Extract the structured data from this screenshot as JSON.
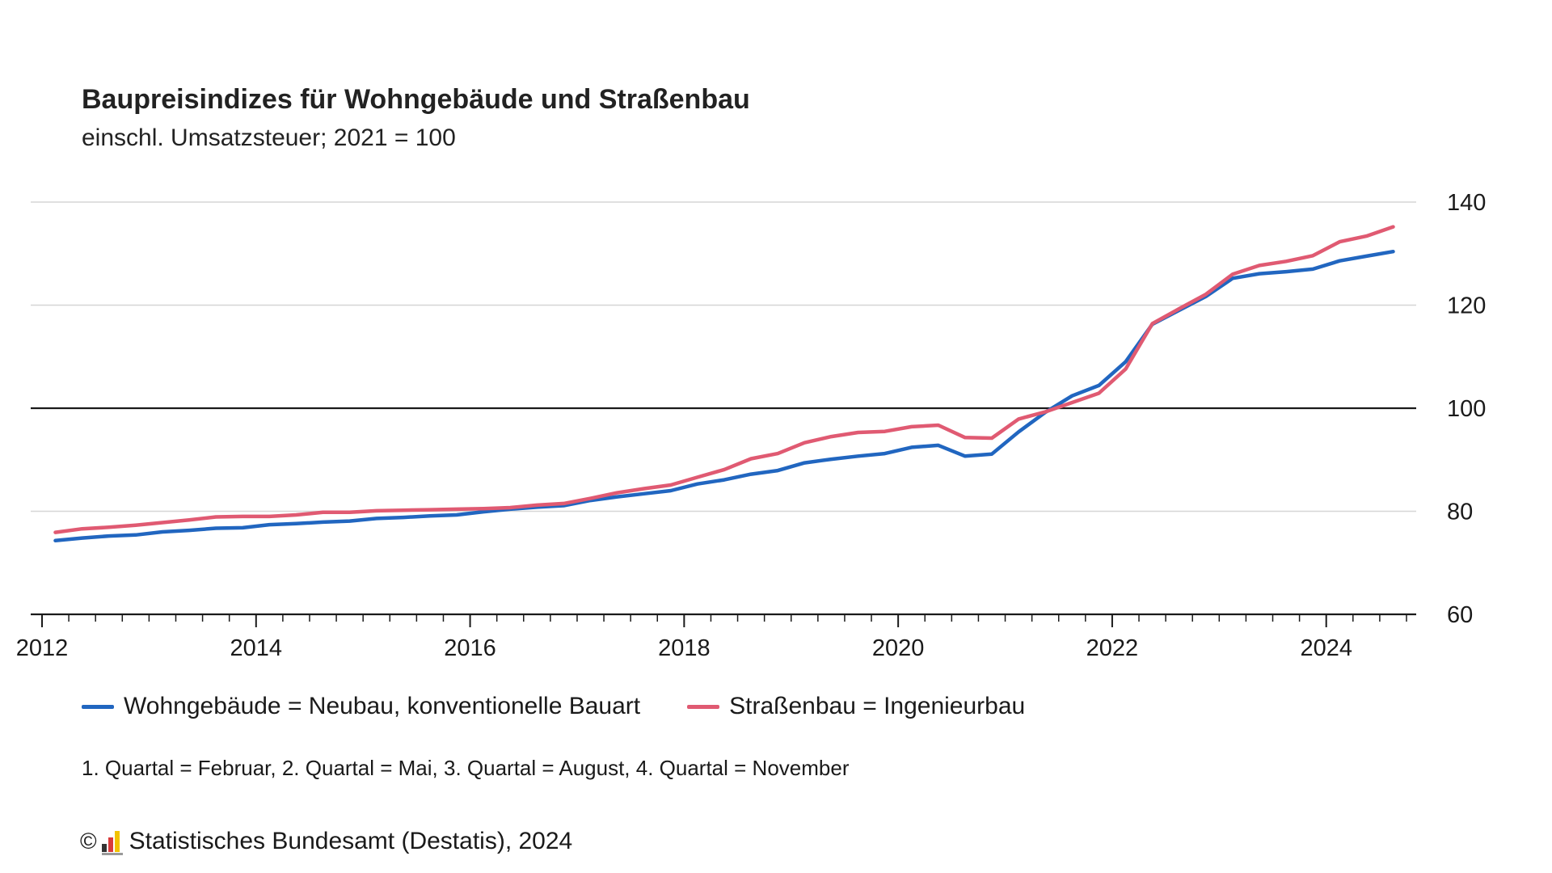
{
  "chart_data": {
    "type": "line",
    "title": "Baupreisindizes für Wohngebäude und Straßenbau",
    "subtitle": "einschl. Umsatzsteuer; 2021 = 100",
    "xlabel": "",
    "ylabel": "",
    "xlim": [
      2012.0,
      2024.75
    ],
    "ylim": [
      60,
      140
    ],
    "yticks": [
      60,
      80,
      100,
      120,
      140
    ],
    "xticks": [
      2012,
      2014,
      2016,
      2018,
      2020,
      2022,
      2024
    ],
    "reference_line": 100,
    "grid": true,
    "legend_position": "bottom",
    "x": [
      2012.125,
      2012.375,
      2012.625,
      2012.875,
      2013.125,
      2013.375,
      2013.625,
      2013.875,
      2014.125,
      2014.375,
      2014.625,
      2014.875,
      2015.125,
      2015.375,
      2015.625,
      2015.875,
      2016.125,
      2016.375,
      2016.625,
      2016.875,
      2017.125,
      2017.375,
      2017.625,
      2017.875,
      2018.125,
      2018.375,
      2018.625,
      2018.875,
      2019.125,
      2019.375,
      2019.625,
      2019.875,
      2020.125,
      2020.375,
      2020.625,
      2020.875,
      2021.125,
      2021.375,
      2021.625,
      2021.875,
      2022.125,
      2022.375,
      2022.625,
      2022.875,
      2023.125,
      2023.375,
      2023.625,
      2023.875,
      2024.125,
      2024.375,
      2024.625
    ],
    "series": [
      {
        "name": "Wohngebäude = Neubau, konventionelle Bauart",
        "color": "#2166c0",
        "values": [
          74.3,
          74.8,
          75.2,
          75.4,
          76.0,
          76.3,
          76.7,
          76.8,
          77.4,
          77.6,
          77.9,
          78.1,
          78.6,
          78.8,
          79.1,
          79.3,
          79.9,
          80.4,
          80.8,
          81.1,
          82.1,
          82.8,
          83.4,
          84.0,
          85.3,
          86.1,
          87.2,
          87.9,
          89.4,
          90.1,
          90.7,
          91.2,
          92.4,
          92.8,
          90.7,
          91.1,
          95.4,
          99.2,
          102.4,
          104.4,
          109.0,
          116.3,
          119.0,
          121.7,
          125.2,
          126.1,
          126.5,
          127.0,
          128.6,
          129.5,
          130.4
        ]
      },
      {
        "name": "Straßenbau = Ingenieurbau",
        "color": "#e05a72",
        "values": [
          75.9,
          76.6,
          76.9,
          77.3,
          77.8,
          78.3,
          78.9,
          79.0,
          79.0,
          79.3,
          79.8,
          79.8,
          80.1,
          80.2,
          80.3,
          80.4,
          80.5,
          80.7,
          81.2,
          81.5,
          82.5,
          83.6,
          84.4,
          85.1,
          86.6,
          88.1,
          90.2,
          91.2,
          93.3,
          94.5,
          95.3,
          95.5,
          96.4,
          96.7,
          94.3,
          94.2,
          97.9,
          99.3,
          101.1,
          102.9,
          107.6,
          116.4,
          119.3,
          122.1,
          126.0,
          127.7,
          128.5,
          129.6,
          132.3,
          133.4,
          135.2
        ]
      }
    ]
  },
  "note": "1. Quartal = Februar, 2. Quartal = Mai, 3. Quartal = August, 4. Quartal = November",
  "source": {
    "copyright_symbol": "©",
    "text": "Statistisches Bundesamt (Destatis), 2024",
    "logo_colors": [
      "#333333",
      "#d93b3b",
      "#f2c200"
    ]
  },
  "colors": {
    "gridline": "#d6d6d6",
    "reference_line": "#1a1a1a",
    "axis": "#1a1a1a"
  }
}
